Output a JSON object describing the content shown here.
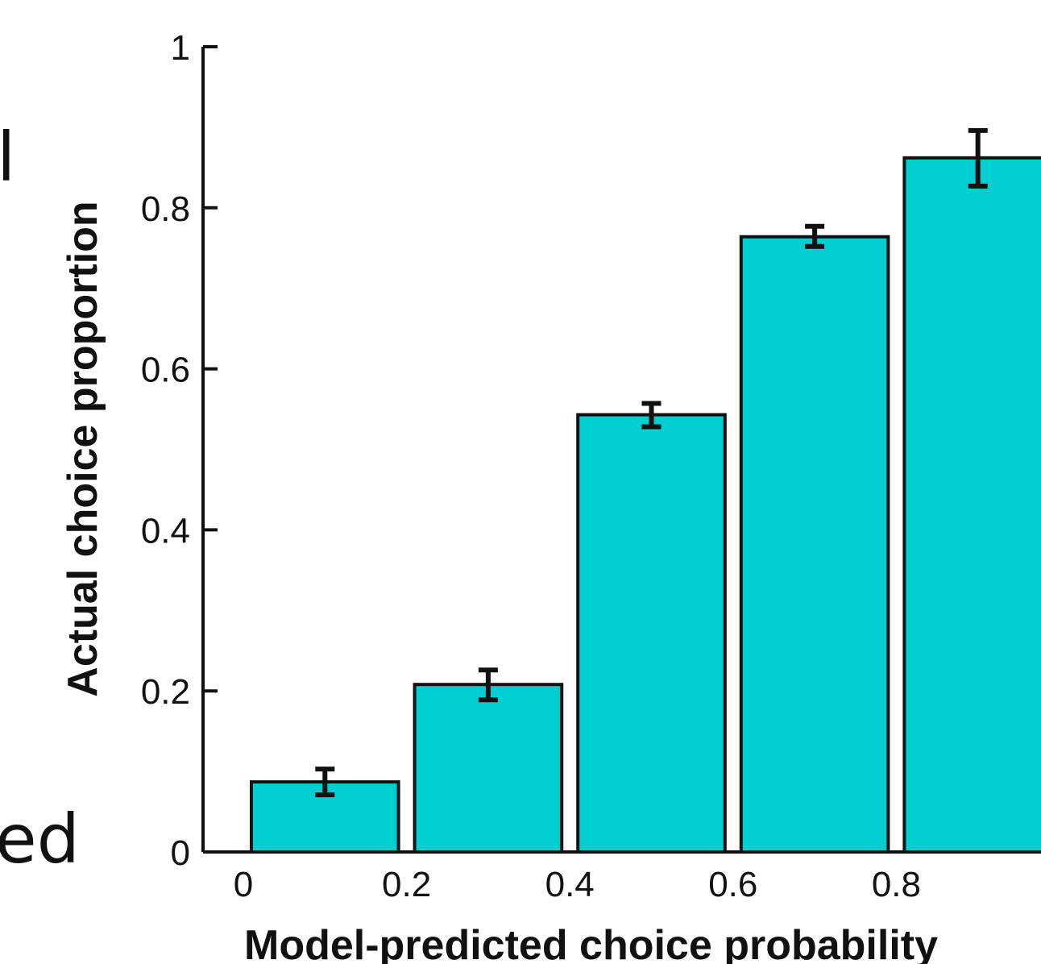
{
  "edge_text": {
    "top": "l",
    "bottom": "ed"
  },
  "colors": {
    "bar_fill": "#00CED1",
    "bar_stroke": "#111111",
    "axis": "#111111"
  },
  "chart_data": {
    "type": "bar",
    "xlabel": "Model-predicted choice probability",
    "ylabel": "Actual choice proportion",
    "xlim": [
      0,
      1
    ],
    "ylim": [
      0,
      1
    ],
    "x_ticks": [
      "0",
      "0.2",
      "0.4",
      "0.6",
      "0.8"
    ],
    "y_ticks": [
      "0",
      "0.2",
      "0.4",
      "0.6",
      "0.8",
      "1"
    ],
    "bins": [
      [
        0,
        0.2
      ],
      [
        0.2,
        0.4
      ],
      [
        0.4,
        0.6
      ],
      [
        0.6,
        0.8
      ],
      [
        0.8,
        1.0
      ]
    ],
    "values": [
      0.087,
      0.208,
      0.543,
      0.764,
      0.862
    ],
    "error_low": [
      0.071,
      0.189,
      0.528,
      0.752,
      0.827
    ],
    "error_high": [
      0.103,
      0.226,
      0.557,
      0.777,
      0.896
    ]
  }
}
